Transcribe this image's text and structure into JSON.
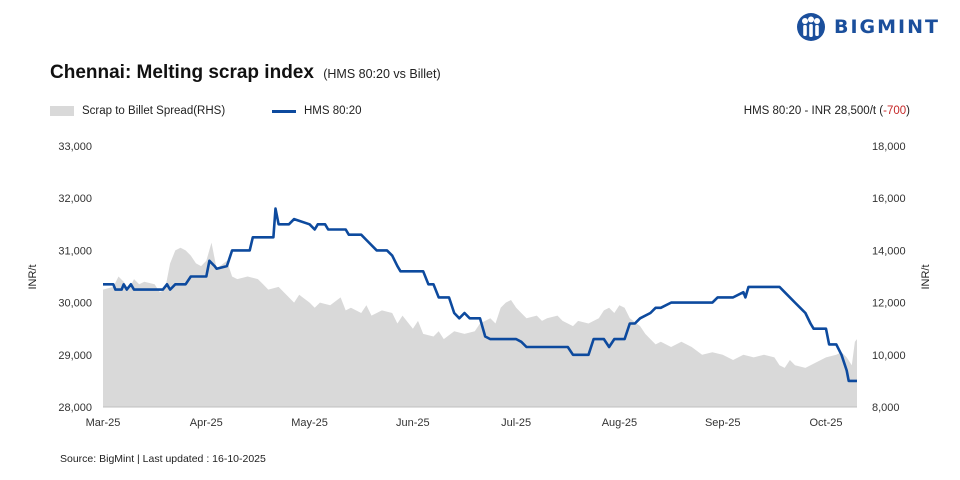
{
  "brand": {
    "name": "BIGMINT",
    "color": "#1b4f9c",
    "icon": "bigmint-logo-icon"
  },
  "chart_data": {
    "type": "line",
    "title": "Chennai: Melting scrap index",
    "subtitle": "(HMS 80:20 vs Billet)",
    "note": {
      "prefix": "HMS 80:20 - INR 28,500/t (",
      "change": "-700",
      "suffix": ")"
    },
    "ylabel_left": "INR/t",
    "ylabel_right": "INR/t",
    "ylim_left": [
      28000,
      33000
    ],
    "ylim_right": [
      8000,
      18000
    ],
    "yticks_left": [
      "28,000",
      "29,000",
      "30,000",
      "31,000",
      "32,000",
      "33,000"
    ],
    "yticks_right": [
      "8,000",
      "10,000",
      "12,000",
      "14,000",
      "16,000",
      "18,000"
    ],
    "x_range": [
      0,
      7.3
    ],
    "categories": [
      "Mar-25",
      "Apr-25",
      "May-25",
      "Jun-25",
      "Jul-25",
      "Aug-25",
      "Sep-25",
      "Oct-25"
    ],
    "legend_placement": "top-left",
    "grid": false,
    "series": [
      {
        "name": "Scrap to Billet Spread(RHS)",
        "type": "area",
        "axis": "right",
        "color": "#d9d9d9",
        "points": [
          [
            0.0,
            12500
          ],
          [
            0.1,
            12600
          ],
          [
            0.15,
            13000
          ],
          [
            0.2,
            12800
          ],
          [
            0.25,
            12500
          ],
          [
            0.3,
            12900
          ],
          [
            0.35,
            12700
          ],
          [
            0.4,
            12800
          ],
          [
            0.5,
            12700
          ],
          [
            0.55,
            12400
          ],
          [
            0.6,
            12500
          ],
          [
            0.65,
            13500
          ],
          [
            0.7,
            14000
          ],
          [
            0.75,
            14100
          ],
          [
            0.8,
            14000
          ],
          [
            0.85,
            13800
          ],
          [
            0.9,
            13500
          ],
          [
            0.95,
            13400
          ],
          [
            1.0,
            13600
          ],
          [
            1.05,
            14300
          ],
          [
            1.1,
            13300
          ],
          [
            1.2,
            13600
          ],
          [
            1.25,
            13000
          ],
          [
            1.3,
            12900
          ],
          [
            1.4,
            13000
          ],
          [
            1.5,
            12900
          ],
          [
            1.55,
            12700
          ],
          [
            1.6,
            12500
          ],
          [
            1.7,
            12600
          ],
          [
            1.8,
            12200
          ],
          [
            1.85,
            12000
          ],
          [
            1.9,
            12300
          ],
          [
            2.0,
            12000
          ],
          [
            2.05,
            11800
          ],
          [
            2.1,
            12000
          ],
          [
            2.2,
            11900
          ],
          [
            2.3,
            12200
          ],
          [
            2.35,
            11700
          ],
          [
            2.4,
            11800
          ],
          [
            2.5,
            11600
          ],
          [
            2.55,
            11900
          ],
          [
            2.6,
            11500
          ],
          [
            2.7,
            11700
          ],
          [
            2.8,
            11600
          ],
          [
            2.85,
            11200
          ],
          [
            2.9,
            11500
          ],
          [
            3.0,
            11000
          ],
          [
            3.05,
            11300
          ],
          [
            3.1,
            10800
          ],
          [
            3.2,
            10700
          ],
          [
            3.25,
            10900
          ],
          [
            3.3,
            10600
          ],
          [
            3.4,
            10900
          ],
          [
            3.5,
            10800
          ],
          [
            3.6,
            10900
          ],
          [
            3.65,
            11200
          ],
          [
            3.7,
            11300
          ],
          [
            3.75,
            11400
          ],
          [
            3.8,
            11200
          ],
          [
            3.85,
            11800
          ],
          [
            3.9,
            12000
          ],
          [
            3.95,
            12100
          ],
          [
            4.0,
            11800
          ],
          [
            4.05,
            11600
          ],
          [
            4.1,
            11400
          ],
          [
            4.2,
            11500
          ],
          [
            4.25,
            11300
          ],
          [
            4.3,
            11400
          ],
          [
            4.4,
            11500
          ],
          [
            4.45,
            11300
          ],
          [
            4.5,
            11200
          ],
          [
            4.55,
            11100
          ],
          [
            4.6,
            11300
          ],
          [
            4.7,
            11200
          ],
          [
            4.8,
            11400
          ],
          [
            4.85,
            11700
          ],
          [
            4.9,
            11800
          ],
          [
            4.95,
            11600
          ],
          [
            5.0,
            11900
          ],
          [
            5.05,
            11800
          ],
          [
            5.1,
            11400
          ],
          [
            5.2,
            11100
          ],
          [
            5.25,
            10800
          ],
          [
            5.3,
            10600
          ],
          [
            5.35,
            10400
          ],
          [
            5.4,
            10500
          ],
          [
            5.5,
            10300
          ],
          [
            5.6,
            10500
          ],
          [
            5.7,
            10300
          ],
          [
            5.8,
            10000
          ],
          [
            5.9,
            10100
          ],
          [
            6.0,
            10000
          ],
          [
            6.1,
            9800
          ],
          [
            6.2,
            10000
          ],
          [
            6.3,
            9900
          ],
          [
            6.4,
            10000
          ],
          [
            6.5,
            9900
          ],
          [
            6.55,
            9600
          ],
          [
            6.6,
            9500
          ],
          [
            6.65,
            9800
          ],
          [
            6.7,
            9600
          ],
          [
            6.8,
            9500
          ],
          [
            6.9,
            9700
          ],
          [
            7.0,
            9900
          ],
          [
            7.1,
            10000
          ],
          [
            7.15,
            10100
          ],
          [
            7.2,
            9900
          ],
          [
            7.25,
            9600
          ],
          [
            7.28,
            10500
          ],
          [
            7.3,
            10600
          ]
        ]
      },
      {
        "name": "HMS 80:20",
        "type": "line",
        "axis": "left",
        "color": "#0d4a9e",
        "points": [
          [
            0.0,
            30350
          ],
          [
            0.1,
            30350
          ],
          [
            0.12,
            30250
          ],
          [
            0.18,
            30250
          ],
          [
            0.2,
            30350
          ],
          [
            0.23,
            30250
          ],
          [
            0.27,
            30350
          ],
          [
            0.3,
            30250
          ],
          [
            0.58,
            30250
          ],
          [
            0.62,
            30350
          ],
          [
            0.65,
            30250
          ],
          [
            0.7,
            30350
          ],
          [
            0.8,
            30350
          ],
          [
            0.85,
            30500
          ],
          [
            1.0,
            30500
          ],
          [
            1.03,
            30800
          ],
          [
            1.08,
            30700
          ],
          [
            1.1,
            30650
          ],
          [
            1.2,
            30700
          ],
          [
            1.25,
            31000
          ],
          [
            1.42,
            31000
          ],
          [
            1.45,
            31250
          ],
          [
            1.65,
            31250
          ],
          [
            1.67,
            31800
          ],
          [
            1.7,
            31500
          ],
          [
            1.8,
            31500
          ],
          [
            1.85,
            31600
          ],
          [
            2.0,
            31500
          ],
          [
            2.05,
            31400
          ],
          [
            2.08,
            31500
          ],
          [
            2.15,
            31500
          ],
          [
            2.18,
            31400
          ],
          [
            2.35,
            31400
          ],
          [
            2.38,
            31300
          ],
          [
            2.5,
            31300
          ],
          [
            2.55,
            31200
          ],
          [
            2.65,
            31000
          ],
          [
            2.75,
            31000
          ],
          [
            2.8,
            30900
          ],
          [
            2.85,
            30700
          ],
          [
            2.88,
            30600
          ],
          [
            3.0,
            30600
          ],
          [
            3.1,
            30600
          ],
          [
            3.15,
            30350
          ],
          [
            3.2,
            30350
          ],
          [
            3.25,
            30100
          ],
          [
            3.35,
            30100
          ],
          [
            3.4,
            29800
          ],
          [
            3.45,
            29700
          ],
          [
            3.5,
            29800
          ],
          [
            3.55,
            29700
          ],
          [
            3.65,
            29700
          ],
          [
            3.7,
            29350
          ],
          [
            3.75,
            29300
          ],
          [
            4.0,
            29300
          ],
          [
            4.05,
            29250
          ],
          [
            4.1,
            29150
          ],
          [
            4.5,
            29150
          ],
          [
            4.55,
            29000
          ],
          [
            4.7,
            29000
          ],
          [
            4.75,
            29300
          ],
          [
            4.85,
            29300
          ],
          [
            4.9,
            29150
          ],
          [
            4.95,
            29300
          ],
          [
            5.05,
            29300
          ],
          [
            5.1,
            29600
          ],
          [
            5.15,
            29600
          ],
          [
            5.2,
            29700
          ],
          [
            5.3,
            29800
          ],
          [
            5.35,
            29900
          ],
          [
            5.4,
            29900
          ],
          [
            5.5,
            30000
          ],
          [
            5.9,
            30000
          ],
          [
            5.95,
            30100
          ],
          [
            6.1,
            30100
          ],
          [
            6.2,
            30200
          ],
          [
            6.22,
            30100
          ],
          [
            6.25,
            30300
          ],
          [
            6.3,
            30300
          ],
          [
            6.45,
            30300
          ],
          [
            6.55,
            30300
          ],
          [
            6.6,
            30200
          ],
          [
            6.65,
            30100
          ],
          [
            6.7,
            30000
          ],
          [
            6.75,
            29900
          ],
          [
            6.8,
            29800
          ],
          [
            6.85,
            29600
          ],
          [
            6.88,
            29500
          ],
          [
            7.0,
            29500
          ],
          [
            7.03,
            29200
          ],
          [
            7.1,
            29200
          ],
          [
            7.15,
            29000
          ],
          [
            7.2,
            28700
          ],
          [
            7.22,
            28500
          ],
          [
            7.3,
            28500
          ]
        ]
      }
    ]
  },
  "source": "Source: BigMint | Last updated : 16-10-2025"
}
